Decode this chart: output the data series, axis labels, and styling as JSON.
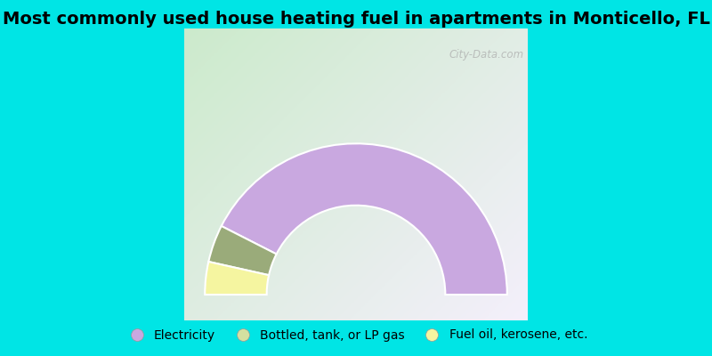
{
  "title": "Most commonly used house heating fuel in apartments in Monticello, FL",
  "title_fontsize": 14,
  "segments": [
    {
      "label": "Electricity",
      "value": 85,
      "color": "#c9a8e0"
    },
    {
      "label": "Bottled, tank, or LP gas",
      "value": 8,
      "color": "#9aab7a"
    },
    {
      "label": "Fuel oil, kerosene, etc.",
      "value": 7,
      "color": "#f5f5a0"
    }
  ],
  "legend_colors": [
    "#c9a8e0",
    "#d4e0a0",
    "#f5f5a0"
  ],
  "legend_labels": [
    "Electricity",
    "Bottled, tank, or LP gas",
    "Fuel oil, kerosene, etc."
  ],
  "background_color_main": "#00e5e5",
  "watermark": "City-Data.com"
}
